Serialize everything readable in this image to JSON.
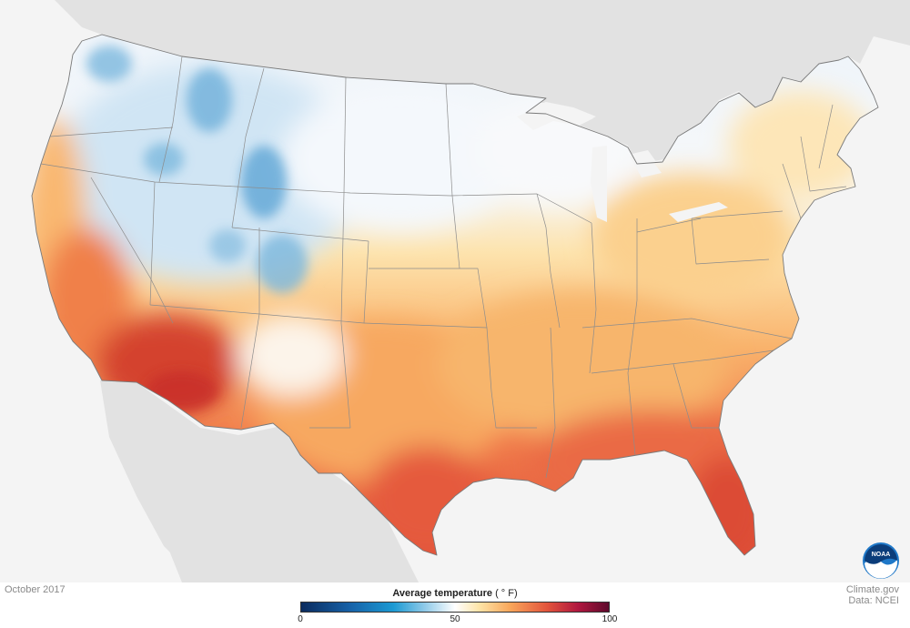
{
  "date_label": "October 2017",
  "credit": {
    "line1": "Climate.gov",
    "line2": "Data: NCEI"
  },
  "legend": {
    "title": "Average temperature",
    "unit": "( ° F)",
    "ticks": [
      "0",
      "50",
      "100"
    ],
    "min": 0,
    "mid": 50,
    "max": 100,
    "colors": [
      "#0b2b5e",
      "#1762a8",
      "#1c9ad3",
      "#8ec9e8",
      "#ffffff",
      "#fde3a6",
      "#f9a65a",
      "#e2543c",
      "#b0173f",
      "#5e0a2c"
    ]
  },
  "logo": {
    "text": "NOAA"
  },
  "map_colors": {
    "ocean": "#f4f4f4",
    "neighbor_land": "#e2e2e2",
    "state_lines": "#8c8c8c",
    "cool": "#d6e8f5",
    "cold": "#9ccbe8",
    "mild": "#fbd79a",
    "warm": "#f69a58",
    "hot": "#e0553b",
    "hottest": "#cc3a30"
  }
}
